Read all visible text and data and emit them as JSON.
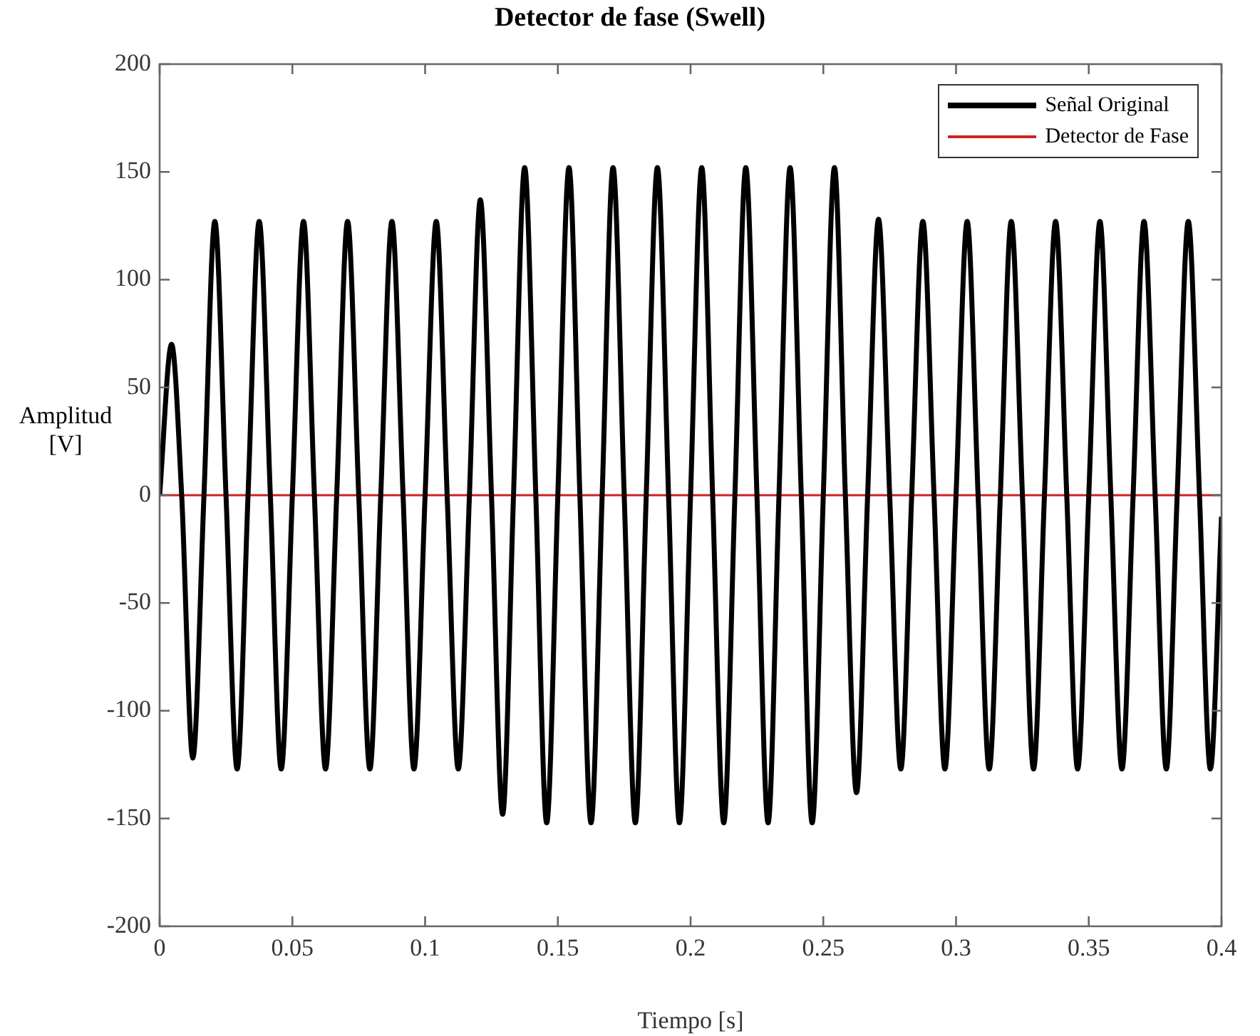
{
  "chart_data": {
    "type": "line",
    "title": "Detector de fase (Swell)",
    "xlabel": "Tiempo [s]",
    "ylabel": "Amplitud [V]",
    "xlim": [
      0,
      0.4
    ],
    "xticks": [
      0,
      0.05,
      0.1,
      0.15,
      0.2,
      0.25,
      0.3,
      0.35,
      0.4
    ],
    "ylim": [
      -200,
      200
    ],
    "yticks": [
      -200,
      -150,
      -100,
      -50,
      0,
      50,
      100,
      150,
      200
    ],
    "grid": false,
    "legend": "top right",
    "marker": "none",
    "line_style": "solid",
    "series": [
      {
        "name": "Señal Original",
        "color": "#000000",
        "x": [
          0,
          0.0045,
          0.0083,
          0.0125,
          0.0167,
          0.0208,
          0.025,
          0.0292,
          0.0333,
          0.0375,
          0.0417,
          0.0458,
          0.05,
          0.0542,
          0.0583,
          0.0625,
          0.0667,
          0.0708,
          0.075,
          0.0792,
          0.0833,
          0.0875,
          0.0917,
          0.0958,
          0.1,
          0.1042,
          0.1083,
          0.1125,
          0.1167,
          0.1208,
          0.125,
          0.1292,
          0.1333,
          0.1375,
          0.1417,
          0.1458,
          0.15,
          0.1542,
          0.1583,
          0.1625,
          0.1667,
          0.1708,
          0.175,
          0.1792,
          0.1833,
          0.1875,
          0.1917,
          0.1958,
          0.2,
          0.2042,
          0.2083,
          0.2125,
          0.2167,
          0.2208,
          0.225,
          0.2292,
          0.2333,
          0.2375,
          0.2417,
          0.2458,
          0.25,
          0.2542,
          0.2583,
          0.2625,
          0.2667,
          0.2708,
          0.275,
          0.2792,
          0.2833,
          0.2875,
          0.2917,
          0.2958,
          0.3,
          0.3042,
          0.3083,
          0.3125,
          0.3167,
          0.3208,
          0.325,
          0.3292,
          0.3333,
          0.3375,
          0.3417,
          0.3458,
          0.35,
          0.3542,
          0.3583,
          0.3625,
          0.3667,
          0.3708,
          0.375,
          0.3792,
          0.3833,
          0.3875,
          0.3917,
          0.3958,
          0.4
        ],
        "values": [
          0,
          70,
          0,
          -122,
          0,
          127,
          0,
          -127,
          0,
          127,
          0,
          -127,
          0,
          127,
          0,
          -127,
          0,
          127,
          0,
          -127,
          0,
          127,
          0,
          -127,
          0,
          127,
          0,
          -127,
          0,
          137,
          0,
          -148,
          0,
          152,
          0,
          -152,
          0,
          152,
          0,
          -152,
          0,
          152,
          0,
          -152,
          0,
          152,
          0,
          -152,
          0,
          152,
          0,
          -152,
          0,
          152,
          0,
          -152,
          0,
          152,
          0,
          -152,
          0,
          152,
          0,
          -138,
          0,
          128,
          0,
          -127,
          0,
          127,
          0,
          -127,
          0,
          127,
          0,
          -127,
          0,
          127,
          0,
          -127,
          0,
          127,
          0,
          -127,
          0,
          127,
          0,
          -127,
          0,
          127,
          0,
          -127,
          0,
          127,
          0,
          -127,
          -10
        ]
      },
      {
        "name": "Detector de Fase",
        "color": "#cc2222",
        "x": [
          0,
          0.4
        ],
        "values": [
          0,
          0
        ]
      }
    ]
  }
}
